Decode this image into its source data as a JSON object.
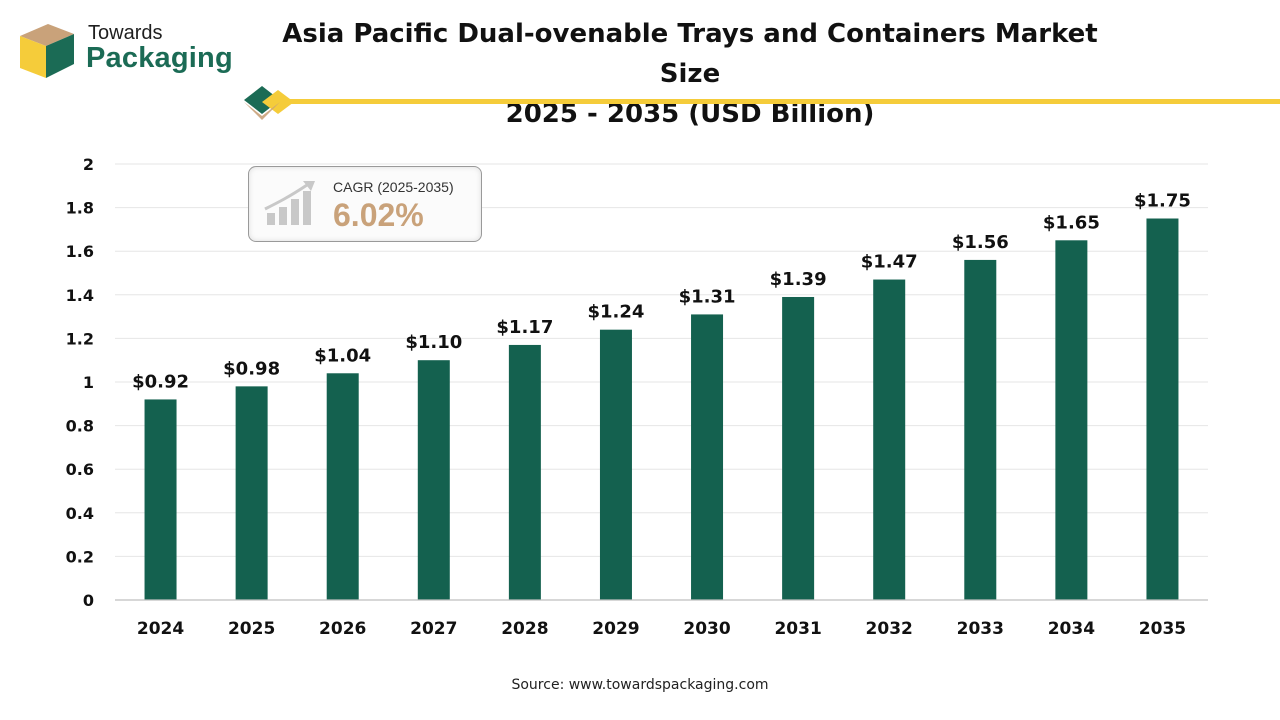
{
  "brand": {
    "line1": "Towards",
    "line2": "Packaging"
  },
  "title": {
    "line1": "Asia Pacific Dual-ovenable Trays and Containers Market Size",
    "line2": "2025 - 2035 (USD Billion)"
  },
  "cagr": {
    "label": "CAGR (2025-2035)",
    "value": "6.02%"
  },
  "source": "Source: www.towardspackaging.com",
  "colors": {
    "bar": "#14614f",
    "accent": "#f5cc3a",
    "cagr_value": "#c9a27a",
    "logo_green": "#1b6b55",
    "logo_tan": "#c9a27a"
  },
  "chart_data": {
    "type": "bar",
    "categories": [
      "2024",
      "2025",
      "2026",
      "2027",
      "2028",
      "2029",
      "2030",
      "2031",
      "2032",
      "2033",
      "2034",
      "2035"
    ],
    "values": [
      0.92,
      0.98,
      1.04,
      1.1,
      1.17,
      1.24,
      1.31,
      1.39,
      1.47,
      1.56,
      1.65,
      1.75
    ],
    "data_labels": [
      "$0.92",
      "$0.98",
      "$1.04",
      "$1.10",
      "$1.17",
      "$1.24",
      "$1.31",
      "$1.39",
      "$1.47",
      "$1.56",
      "$1.65",
      "$1.75"
    ],
    "yticks": [
      "0",
      "0.2",
      "0.4",
      "0.6",
      "0.8",
      "1",
      "1.2",
      "1.4",
      "1.6",
      "1.8",
      "2"
    ],
    "ylim": [
      0,
      2
    ],
    "grid": true,
    "legend": "none"
  }
}
